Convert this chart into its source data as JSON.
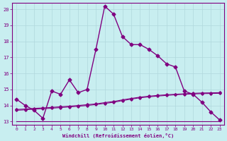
{
  "xlabel": "Windchill (Refroidissement éolien,°C)",
  "background_color": "#c8eef0",
  "grid_color": "#b0d8dc",
  "line_color": "#800080",
  "xlim": [
    -0.5,
    23.5
  ],
  "ylim": [
    12.8,
    20.4
  ],
  "xticks": [
    0,
    1,
    2,
    3,
    4,
    5,
    6,
    7,
    8,
    9,
    10,
    11,
    12,
    13,
    14,
    15,
    16,
    17,
    18,
    19,
    20,
    21,
    22,
    23
  ],
  "yticks": [
    13,
    14,
    15,
    16,
    17,
    18,
    19,
    20
  ],
  "main_x": [
    0,
    1,
    2,
    3,
    4,
    5,
    6,
    7,
    8,
    9,
    10,
    11,
    12,
    13,
    14,
    15,
    16,
    17,
    18,
    19,
    20,
    21,
    22,
    23
  ],
  "main_y": [
    14.4,
    14.0,
    13.7,
    13.2,
    14.9,
    14.7,
    15.6,
    14.8,
    15.0,
    17.5,
    20.2,
    19.7,
    18.3,
    17.8,
    17.8,
    17.5,
    17.1,
    16.6,
    16.4,
    14.9,
    14.7,
    14.2,
    13.6,
    13.1
  ],
  "flat_x": [
    0,
    1,
    2,
    3,
    4,
    5,
    6,
    7,
    8,
    9,
    10,
    11,
    12,
    13,
    14,
    15,
    16,
    17,
    18,
    19,
    20,
    21,
    22,
    23
  ],
  "flat_y": [
    13.0,
    13.0,
    13.0,
    13.0,
    13.0,
    13.0,
    13.0,
    13.0,
    13.0,
    13.0,
    13.0,
    13.0,
    13.0,
    13.0,
    13.0,
    13.0,
    13.0,
    13.0,
    13.0,
    13.0,
    13.0,
    13.0,
    13.0,
    13.0
  ],
  "slow1_x": [
    0,
    1,
    2,
    3,
    4,
    5,
    6,
    7,
    8,
    9,
    10,
    11,
    12,
    13,
    14,
    15,
    16,
    17,
    18,
    19,
    20,
    21,
    22,
    23
  ],
  "slow1_y": [
    13.75,
    13.78,
    13.82,
    13.85,
    13.88,
    13.92,
    13.96,
    14.0,
    14.05,
    14.1,
    14.18,
    14.25,
    14.35,
    14.44,
    14.52,
    14.58,
    14.63,
    14.67,
    14.7,
    14.73,
    14.76,
    14.78,
    14.79,
    14.8
  ],
  "slow2_x": [
    0,
    1,
    2,
    3,
    4,
    5,
    6,
    7,
    8,
    9,
    10,
    11,
    12,
    13,
    14,
    15,
    16,
    17,
    18,
    19,
    20,
    21,
    22,
    23
  ],
  "slow2_y": [
    13.7,
    13.73,
    13.77,
    13.8,
    13.83,
    13.87,
    13.91,
    13.95,
    14.0,
    14.06,
    14.13,
    14.2,
    14.3,
    14.4,
    14.48,
    14.54,
    14.59,
    14.63,
    14.67,
    14.7,
    14.72,
    14.74,
    14.75,
    14.76
  ]
}
